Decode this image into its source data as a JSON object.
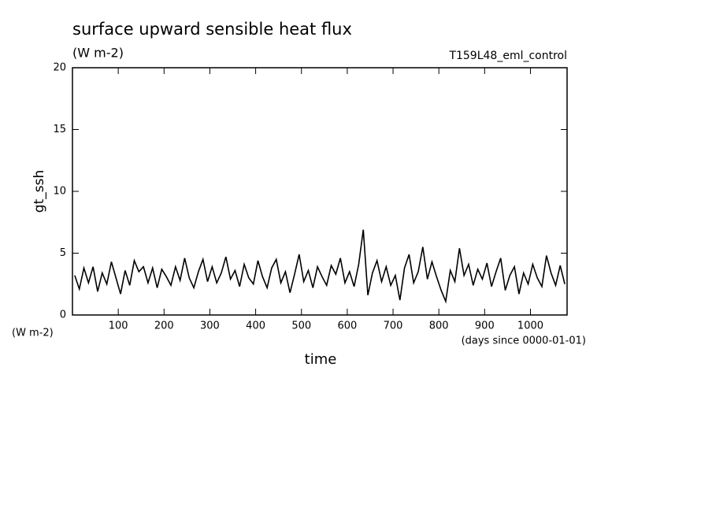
{
  "chart_data": {
    "type": "line",
    "title": "surface upward sensible heat flux",
    "subtitle": "(W m-2)",
    "experiment": "T159L48_eml_control",
    "y_label": "gt_ssh",
    "y_unit": "(W m-2)",
    "x_label": "time",
    "x_unit": "(days since 0000-01-01)",
    "xlim": [
      0,
      1080
    ],
    "ylim": [
      0,
      20
    ],
    "xticks": [
      100,
      200,
      300,
      400,
      500,
      600,
      700,
      800,
      900,
      1000
    ],
    "yticks": [
      0,
      5,
      10,
      15,
      20
    ],
    "color": "#000000",
    "x": [
      5,
      15,
      25,
      35,
      45,
      55,
      65,
      75,
      85,
      95,
      105,
      115,
      125,
      135,
      145,
      155,
      165,
      175,
      185,
      195,
      205,
      215,
      225,
      235,
      245,
      255,
      265,
      275,
      285,
      295,
      305,
      315,
      325,
      335,
      345,
      355,
      365,
      375,
      385,
      395,
      405,
      415,
      425,
      435,
      445,
      455,
      465,
      475,
      485,
      495,
      505,
      515,
      525,
      535,
      545,
      555,
      565,
      575,
      585,
      595,
      605,
      615,
      625,
      635,
      645,
      655,
      665,
      675,
      685,
      695,
      705,
      715,
      725,
      735,
      745,
      755,
      765,
      775,
      785,
      795,
      805,
      815,
      825,
      835,
      845,
      855,
      865,
      875,
      885,
      895,
      905,
      915,
      925,
      935,
      945,
      955,
      965,
      975,
      985,
      995,
      1005,
      1015,
      1025,
      1035,
      1045,
      1055,
      1065,
      1075
    ],
    "values": [
      3.2,
      2.1,
      3.8,
      2.6,
      3.9,
      1.9,
      3.4,
      2.5,
      4.3,
      3.0,
      1.7,
      3.6,
      2.4,
      4.4,
      3.5,
      3.9,
      2.6,
      3.8,
      2.2,
      3.7,
      3.1,
      2.4,
      3.9,
      2.8,
      4.6,
      3.0,
      2.2,
      3.5,
      4.5,
      2.7,
      3.9,
      2.6,
      3.4,
      4.7,
      2.9,
      3.6,
      2.3,
      4.1,
      3.0,
      2.5,
      4.4,
      3.1,
      2.2,
      3.8,
      4.5,
      2.6,
      3.5,
      1.8,
      3.3,
      4.9,
      2.7,
      3.6,
      2.2,
      3.9,
      3.1,
      2.4,
      4.0,
      3.3,
      4.6,
      2.6,
      3.5,
      2.3,
      4.1,
      6.9,
      1.6,
      3.4,
      4.4,
      2.7,
      3.9,
      2.4,
      3.2,
      1.2,
      3.8,
      4.9,
      2.6,
      3.5,
      5.5,
      2.9,
      4.3,
      3.1,
      2.0,
      1.1,
      3.6,
      2.7,
      5.4,
      3.2,
      4.1,
      2.4,
      3.7,
      2.9,
      4.2,
      2.3,
      3.5,
      4.6,
      2.0,
      3.2,
      3.9,
      1.7,
      3.4,
      2.5,
      4.1,
      3.0,
      2.3,
      4.8,
      3.4,
      2.4,
      4.0,
      2.5
    ]
  }
}
